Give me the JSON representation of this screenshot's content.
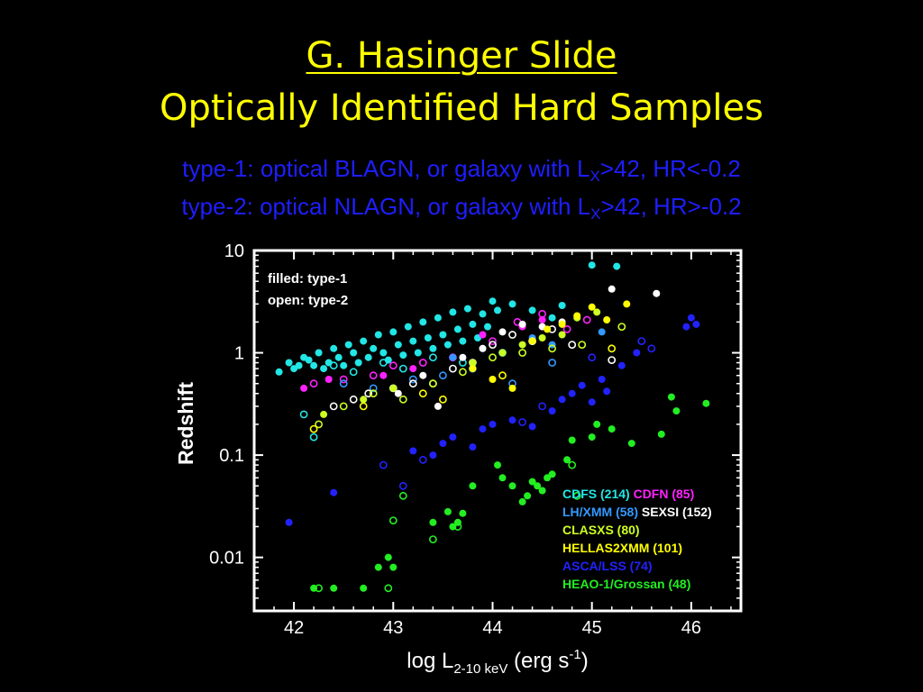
{
  "slide": {
    "title": "G. Hasinger Slide",
    "subtitle": "Optically Identified Hard Samples",
    "def1": {
      "pre": "type-1: optical BLAGN, or galaxy with L",
      "sub": "X",
      "post": ">42, HR<-0.2"
    },
    "def2": {
      "pre": "type-2: optical NLAGN, or galaxy with L",
      "sub": "X",
      "post": ">42, HR>-0.2"
    }
  },
  "colors": {
    "title": "#ffff00",
    "subtitle": "#1e1eff",
    "CDFS": "#22e6e6",
    "CDFN": "#ff22ff",
    "LH/XMM": "#3399ff",
    "SEXSI": "#ffffff",
    "CLASXS": "#ccff22",
    "HELLAS2XMM": "#ffff00",
    "ASCA/LSS": "#2222ff",
    "HEAO-1/Grossan": "#22ee22"
  },
  "chart_data": {
    "type": "scatter",
    "xlabel": {
      "pre": "log L",
      "sub": "2-10 keV",
      "mid": " (erg s",
      "sup": "-1",
      "post": ")"
    },
    "ylabel": "Redshift",
    "xlim": [
      41.6,
      46.5
    ],
    "ylim": [
      0.003,
      10
    ],
    "yscale": "log",
    "xticks": [
      "42",
      "43",
      "44",
      "45",
      "46"
    ],
    "yticks": [
      "0.01",
      "0.1",
      "1",
      "10"
    ],
    "annotation": [
      "filled: type-1",
      "open: type-2"
    ],
    "legend": [
      {
        "label": "CDFS (214)",
        "color": "#22e6e6"
      },
      {
        "label": "CDFN (85)",
        "color": "#ff22ff"
      },
      {
        "label": "LH/XMM (58)",
        "color": "#3399ff"
      },
      {
        "label": "SEXSI (152)",
        "color": "#ffffff"
      },
      {
        "label": "CLASXS (80)",
        "color": "#ccff22"
      },
      {
        "label": "HELLAS2XMM (101)",
        "color": "#ffff00"
      },
      {
        "label": "ASCA/LSS (74)",
        "color": "#2222ff"
      },
      {
        "label": "HEAO-1/Grossan (48)",
        "color": "#22ee22"
      }
    ],
    "legend_position": "bottom-right",
    "series": [
      {
        "name": "CDFS (214)",
        "color": "#22e6e6",
        "points": [
          [
            41.85,
            0.65,
            0
          ],
          [
            41.95,
            0.8,
            0
          ],
          [
            42.0,
            0.7,
            0
          ],
          [
            42.05,
            0.75,
            0
          ],
          [
            42.1,
            0.9,
            0
          ],
          [
            42.15,
            0.85,
            0
          ],
          [
            42.2,
            0.75,
            0
          ],
          [
            42.25,
            1.0,
            0
          ],
          [
            42.3,
            0.7,
            0
          ],
          [
            42.35,
            0.8,
            0
          ],
          [
            42.4,
            1.1,
            0
          ],
          [
            42.45,
            0.9,
            0
          ],
          [
            42.5,
            0.75,
            0
          ],
          [
            42.55,
            1.2,
            0
          ],
          [
            42.6,
            1.0,
            0
          ],
          [
            42.65,
            0.8,
            0
          ],
          [
            42.7,
            1.3,
            0
          ],
          [
            42.75,
            0.9,
            0
          ],
          [
            42.8,
            1.1,
            0
          ],
          [
            42.85,
            1.5,
            0
          ],
          [
            42.9,
            1.0,
            0
          ],
          [
            42.95,
            0.85,
            0
          ],
          [
            43.0,
            1.6,
            0
          ],
          [
            43.05,
            1.2,
            0
          ],
          [
            43.1,
            0.95,
            0
          ],
          [
            43.15,
            1.8,
            0
          ],
          [
            43.2,
            1.3,
            0
          ],
          [
            43.25,
            1.0,
            0
          ],
          [
            43.3,
            2.0,
            0
          ],
          [
            43.35,
            1.4,
            0
          ],
          [
            43.4,
            1.1,
            0
          ],
          [
            43.45,
            2.2,
            0
          ],
          [
            43.5,
            1.5,
            0
          ],
          [
            43.55,
            1.2,
            0
          ],
          [
            43.6,
            2.5,
            0
          ],
          [
            43.65,
            1.7,
            0
          ],
          [
            43.7,
            1.3,
            0
          ],
          [
            43.75,
            2.7,
            0
          ],
          [
            43.8,
            1.9,
            0
          ],
          [
            43.85,
            1.4,
            0
          ],
          [
            43.9,
            2.4,
            0
          ],
          [
            43.95,
            1.8,
            0
          ],
          [
            44.0,
            3.2,
            0
          ],
          [
            44.05,
            2.6,
            0
          ],
          [
            44.2,
            3.0,
            0
          ],
          [
            44.4,
            2.6,
            0
          ],
          [
            44.6,
            2.2,
            0
          ],
          [
            44.7,
            2.9,
            0
          ],
          [
            45.0,
            7.2,
            0
          ],
          [
            45.25,
            7.0,
            0
          ],
          [
            42.1,
            0.25,
            1
          ],
          [
            42.2,
            0.15,
            1
          ],
          [
            42.4,
            0.75,
            1
          ],
          [
            42.6,
            0.65,
            1
          ],
          [
            42.9,
            0.8,
            1
          ],
          [
            43.1,
            0.7,
            1
          ],
          [
            43.4,
            0.9,
            1
          ],
          [
            43.7,
            0.8,
            1
          ],
          [
            44.1,
            1.0,
            1
          ]
        ]
      },
      {
        "name": "CDFN (85)",
        "color": "#ff22ff",
        "points": [
          [
            42.1,
            0.45,
            0
          ],
          [
            42.35,
            0.55,
            0
          ],
          [
            42.9,
            0.6,
            0
          ],
          [
            43.2,
            0.7,
            0
          ],
          [
            43.9,
            1.5,
            0
          ],
          [
            44.3,
            1.8,
            0
          ],
          [
            44.5,
            2.1,
            0
          ],
          [
            42.2,
            0.5,
            1
          ],
          [
            42.5,
            0.55,
            1
          ],
          [
            42.8,
            0.6,
            1
          ],
          [
            43.0,
            0.75,
            1
          ],
          [
            43.3,
            0.8,
            1
          ],
          [
            43.6,
            0.9,
            1
          ],
          [
            44.0,
            1.3,
            1
          ],
          [
            44.25,
            2.0,
            1
          ],
          [
            44.5,
            2.4,
            1
          ],
          [
            44.75,
            1.7,
            1
          ],
          [
            44.95,
            2.1,
            1
          ]
        ]
      },
      {
        "name": "LH/XMM (58)",
        "color": "#3399ff",
        "points": [
          [
            43.6,
            0.9,
            0
          ],
          [
            43.9,
            1.1,
            0
          ],
          [
            44.4,
            1.4,
            0
          ],
          [
            44.6,
            1.2,
            0
          ],
          [
            45.1,
            1.6,
            0
          ],
          [
            42.5,
            0.5,
            1
          ],
          [
            42.8,
            0.45,
            1
          ],
          [
            43.2,
            0.55,
            1
          ],
          [
            43.5,
            0.6,
            1
          ],
          [
            43.8,
            0.7,
            1
          ],
          [
            44.2,
            0.5,
            1
          ],
          [
            44.6,
            0.8,
            1
          ]
        ]
      },
      {
        "name": "SEXSI (152)",
        "color": "#ffffff",
        "points": [
          [
            43.05,
            0.4,
            0
          ],
          [
            43.3,
            0.6,
            0
          ],
          [
            43.45,
            0.3,
            0
          ],
          [
            43.7,
            0.9,
            0
          ],
          [
            43.9,
            1.1,
            0
          ],
          [
            44.1,
            1.6,
            0
          ],
          [
            44.3,
            1.9,
            0
          ],
          [
            44.5,
            1.8,
            0
          ],
          [
            44.7,
            2.0,
            0
          ],
          [
            45.2,
            4.2,
            0
          ],
          [
            45.65,
            3.8,
            0
          ],
          [
            42.4,
            0.3,
            1
          ],
          [
            42.6,
            0.35,
            1
          ],
          [
            42.75,
            0.4,
            1
          ],
          [
            43.0,
            0.45,
            1
          ],
          [
            43.2,
            0.5,
            1
          ],
          [
            43.4,
            0.5,
            1
          ],
          [
            43.6,
            0.7,
            1
          ],
          [
            43.8,
            0.8,
            1
          ],
          [
            44.0,
            1.2,
            1
          ],
          [
            44.2,
            1.5,
            1
          ],
          [
            44.4,
            1.3,
            1
          ],
          [
            44.6,
            1.7,
            1
          ],
          [
            44.8,
            1.2,
            1
          ],
          [
            45.2,
            0.85,
            1
          ]
        ]
      },
      {
        "name": "CLASXS (80)",
        "color": "#ccff22",
        "points": [
          [
            42.3,
            0.25,
            0
          ],
          [
            42.7,
            0.35,
            0
          ],
          [
            43.0,
            0.45,
            0
          ],
          [
            43.8,
            0.8,
            0
          ],
          [
            44.1,
            1.0,
            0
          ],
          [
            44.3,
            1.2,
            0
          ],
          [
            44.5,
            1.4,
            0
          ],
          [
            44.7,
            1.5,
            0
          ],
          [
            44.85,
            2.2,
            0
          ],
          [
            45.05,
            2.5,
            0
          ],
          [
            42.25,
            0.2,
            1
          ],
          [
            42.5,
            0.3,
            1
          ],
          [
            42.8,
            0.4,
            1
          ],
          [
            43.1,
            0.35,
            1
          ],
          [
            43.4,
            0.5,
            1
          ],
          [
            43.7,
            0.65,
            1
          ],
          [
            44.0,
            0.9,
            1
          ],
          [
            44.3,
            1.0,
            1
          ],
          [
            44.6,
            1.1,
            1
          ],
          [
            44.9,
            1.2,
            1
          ],
          [
            45.3,
            1.8,
            1
          ]
        ]
      },
      {
        "name": "HELLAS2XMM (101)",
        "color": "#ffff00",
        "points": [
          [
            43.8,
            0.7,
            0
          ],
          [
            44.0,
            0.55,
            0
          ],
          [
            44.2,
            0.45,
            0
          ],
          [
            44.4,
            1.3,
            0
          ],
          [
            44.55,
            1.7,
            0
          ],
          [
            44.7,
            1.9,
            0
          ],
          [
            44.85,
            2.3,
            0
          ],
          [
            45.0,
            2.8,
            0
          ],
          [
            45.15,
            2.1,
            0
          ],
          [
            45.35,
            3.0,
            0
          ],
          [
            42.2,
            0.18,
            1
          ],
          [
            42.7,
            0.3,
            1
          ],
          [
            43.3,
            0.4,
            1
          ],
          [
            43.5,
            0.35,
            1
          ],
          [
            44.1,
            0.6,
            1
          ],
          [
            45.2,
            1.1,
            1
          ]
        ]
      },
      {
        "name": "ASCA/LSS (74)",
        "color": "#2222ff",
        "points": [
          [
            41.95,
            0.022,
            0
          ],
          [
            42.4,
            0.043,
            0
          ],
          [
            43.2,
            0.11,
            0
          ],
          [
            43.4,
            0.1,
            0
          ],
          [
            43.5,
            0.13,
            0
          ],
          [
            43.6,
            0.15,
            0
          ],
          [
            43.8,
            0.12,
            0
          ],
          [
            43.9,
            0.18,
            0
          ],
          [
            44.0,
            0.2,
            0
          ],
          [
            44.2,
            0.22,
            0
          ],
          [
            44.4,
            0.19,
            0
          ],
          [
            44.6,
            0.27,
            0
          ],
          [
            44.7,
            0.35,
            0
          ],
          [
            44.8,
            0.4,
            0
          ],
          [
            44.9,
            0.48,
            0
          ],
          [
            45.0,
            0.33,
            0
          ],
          [
            45.1,
            0.55,
            0
          ],
          [
            45.15,
            0.42,
            0
          ],
          [
            45.3,
            0.75,
            0
          ],
          [
            45.45,
            1.0,
            0
          ],
          [
            45.95,
            1.8,
            0
          ],
          [
            46.0,
            2.2,
            0
          ],
          [
            46.05,
            1.9,
            0
          ],
          [
            42.9,
            0.08,
            1
          ],
          [
            43.1,
            0.05,
            1
          ],
          [
            43.3,
            0.09,
            1
          ],
          [
            44.3,
            0.21,
            1
          ],
          [
            44.5,
            0.3,
            1
          ],
          [
            45.0,
            0.9,
            1
          ],
          [
            45.5,
            1.3,
            1
          ],
          [
            45.6,
            1.1,
            1
          ]
        ]
      },
      {
        "name": "HEAO-1/Grossan (48)",
        "color": "#22ee22",
        "points": [
          [
            42.2,
            0.005,
            0
          ],
          [
            42.4,
            0.005,
            0
          ],
          [
            42.7,
            0.005,
            0
          ],
          [
            42.85,
            0.008,
            0
          ],
          [
            42.95,
            0.01,
            0
          ],
          [
            43.0,
            0.008,
            0
          ],
          [
            43.4,
            0.022,
            0
          ],
          [
            43.55,
            0.028,
            0
          ],
          [
            43.6,
            0.02,
            0
          ],
          [
            43.65,
            0.022,
            0
          ],
          [
            43.7,
            0.027,
            0
          ],
          [
            43.8,
            0.05,
            0
          ],
          [
            44.05,
            0.08,
            0
          ],
          [
            44.1,
            0.06,
            0
          ],
          [
            44.2,
            0.05,
            0
          ],
          [
            44.3,
            0.035,
            0
          ],
          [
            44.35,
            0.04,
            0
          ],
          [
            44.4,
            0.055,
            0
          ],
          [
            44.45,
            0.05,
            0
          ],
          [
            44.5,
            0.045,
            0
          ],
          [
            44.55,
            0.06,
            0
          ],
          [
            44.6,
            0.065,
            0
          ],
          [
            44.75,
            0.09,
            0
          ],
          [
            44.8,
            0.14,
            0
          ],
          [
            45.0,
            0.15,
            0
          ],
          [
            45.05,
            0.2,
            0
          ],
          [
            45.2,
            0.18,
            0
          ],
          [
            45.4,
            0.13,
            0
          ],
          [
            45.7,
            0.16,
            0
          ],
          [
            45.8,
            0.37,
            0
          ],
          [
            45.85,
            0.27,
            0
          ],
          [
            46.15,
            0.32,
            0
          ],
          [
            42.25,
            0.005,
            1
          ],
          [
            42.95,
            0.005,
            1
          ],
          [
            43.0,
            0.023,
            1
          ],
          [
            43.1,
            0.04,
            1
          ],
          [
            43.4,
            0.015,
            1
          ],
          [
            43.65,
            0.02,
            1
          ],
          [
            44.8,
            0.08,
            1
          ],
          [
            44.85,
            0.04,
            1
          ]
        ]
      }
    ]
  }
}
